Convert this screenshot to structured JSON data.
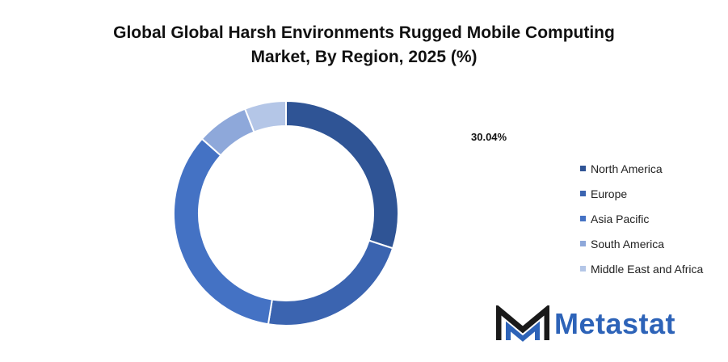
{
  "chart_data": {
    "type": "pie",
    "title_lines": [
      "Global Global Harsh Environments Rugged Mobile Computing",
      "Market, By Region, 2025 (%)"
    ],
    "annotation": "30.04%",
    "legend_position": "right",
    "series": [
      {
        "name": "North America",
        "value": 30.04,
        "color": "#2f5495"
      },
      {
        "name": "Europe",
        "value": 22.5,
        "color": "#3b64b0"
      },
      {
        "name": "Asia Pacific",
        "value": 34.0,
        "color": "#4472c4"
      },
      {
        "name": "South America",
        "value": 7.5,
        "color": "#8ea8da"
      },
      {
        "name": "Middle East and Africa",
        "value": 5.96,
        "color": "#b4c6e7"
      }
    ]
  },
  "brand": {
    "name": "Metastat",
    "logo_icon": "metastat-m-logo-icon",
    "color": "#2d63b8"
  }
}
